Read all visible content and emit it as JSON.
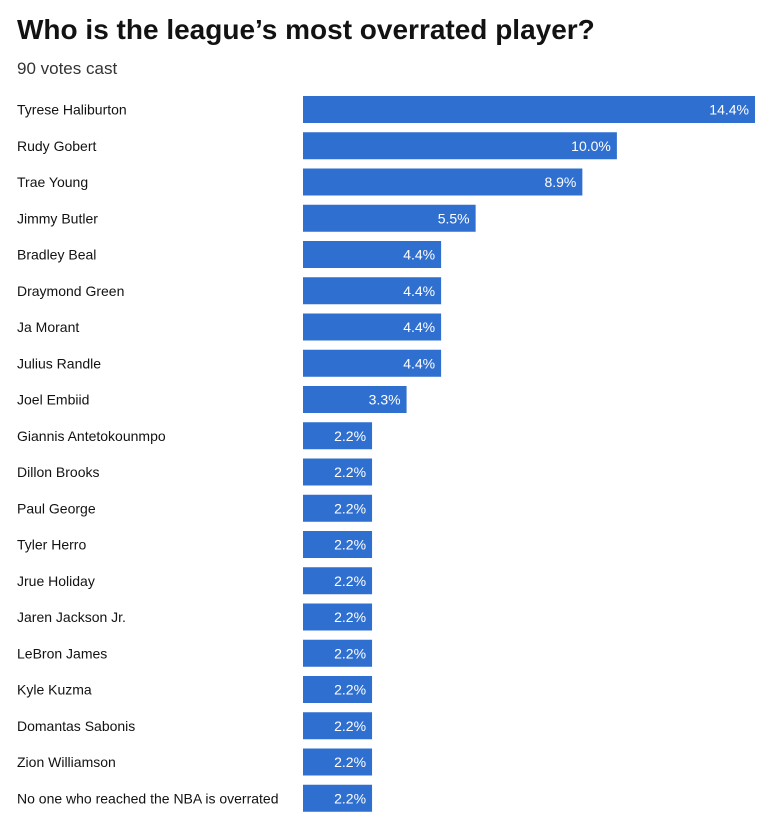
{
  "title": "Who is the league’s most overrated player?",
  "subtitle": "90 votes cast",
  "colors": {
    "bar": "#2f6fcf",
    "bar_text": "#ffffff",
    "label": "#121212"
  },
  "chart_data": {
    "type": "bar",
    "orientation": "horizontal",
    "title": "Who is the league’s most overrated player?",
    "subtitle": "90 votes cast",
    "categories": [
      "Tyrese Haliburton",
      "Rudy Gobert",
      "Trae Young",
      "Jimmy Butler",
      "Bradley Beal",
      "Draymond Green",
      "Ja Morant",
      "Julius Randle",
      "Joel Embiid",
      "Giannis Antetokounmpo",
      "Dillon Brooks",
      "Paul George",
      "Tyler Herro",
      "Jrue Holiday",
      "Jaren Jackson Jr.",
      "LeBron James",
      "Kyle Kuzma",
      "Domantas Sabonis",
      "Zion Williamson",
      "No one who reached the NBA is overrated"
    ],
    "values": [
      14.4,
      10.0,
      8.9,
      5.5,
      4.4,
      4.4,
      4.4,
      4.4,
      3.3,
      2.2,
      2.2,
      2.2,
      2.2,
      2.2,
      2.2,
      2.2,
      2.2,
      2.2,
      2.2,
      2.2
    ],
    "value_labels": [
      "14.4%",
      "10.0%",
      "8.9%",
      "5.5%",
      "4.4%",
      "4.4%",
      "4.4%",
      "4.4%",
      "3.3%",
      "2.2%",
      "2.2%",
      "2.2%",
      "2.2%",
      "2.2%",
      "2.2%",
      "2.2%",
      "2.2%",
      "2.2%",
      "2.2%",
      "2.2%"
    ],
    "xlim": [
      0,
      14.4
    ],
    "unit": "%",
    "grid": false,
    "legend": "none"
  }
}
